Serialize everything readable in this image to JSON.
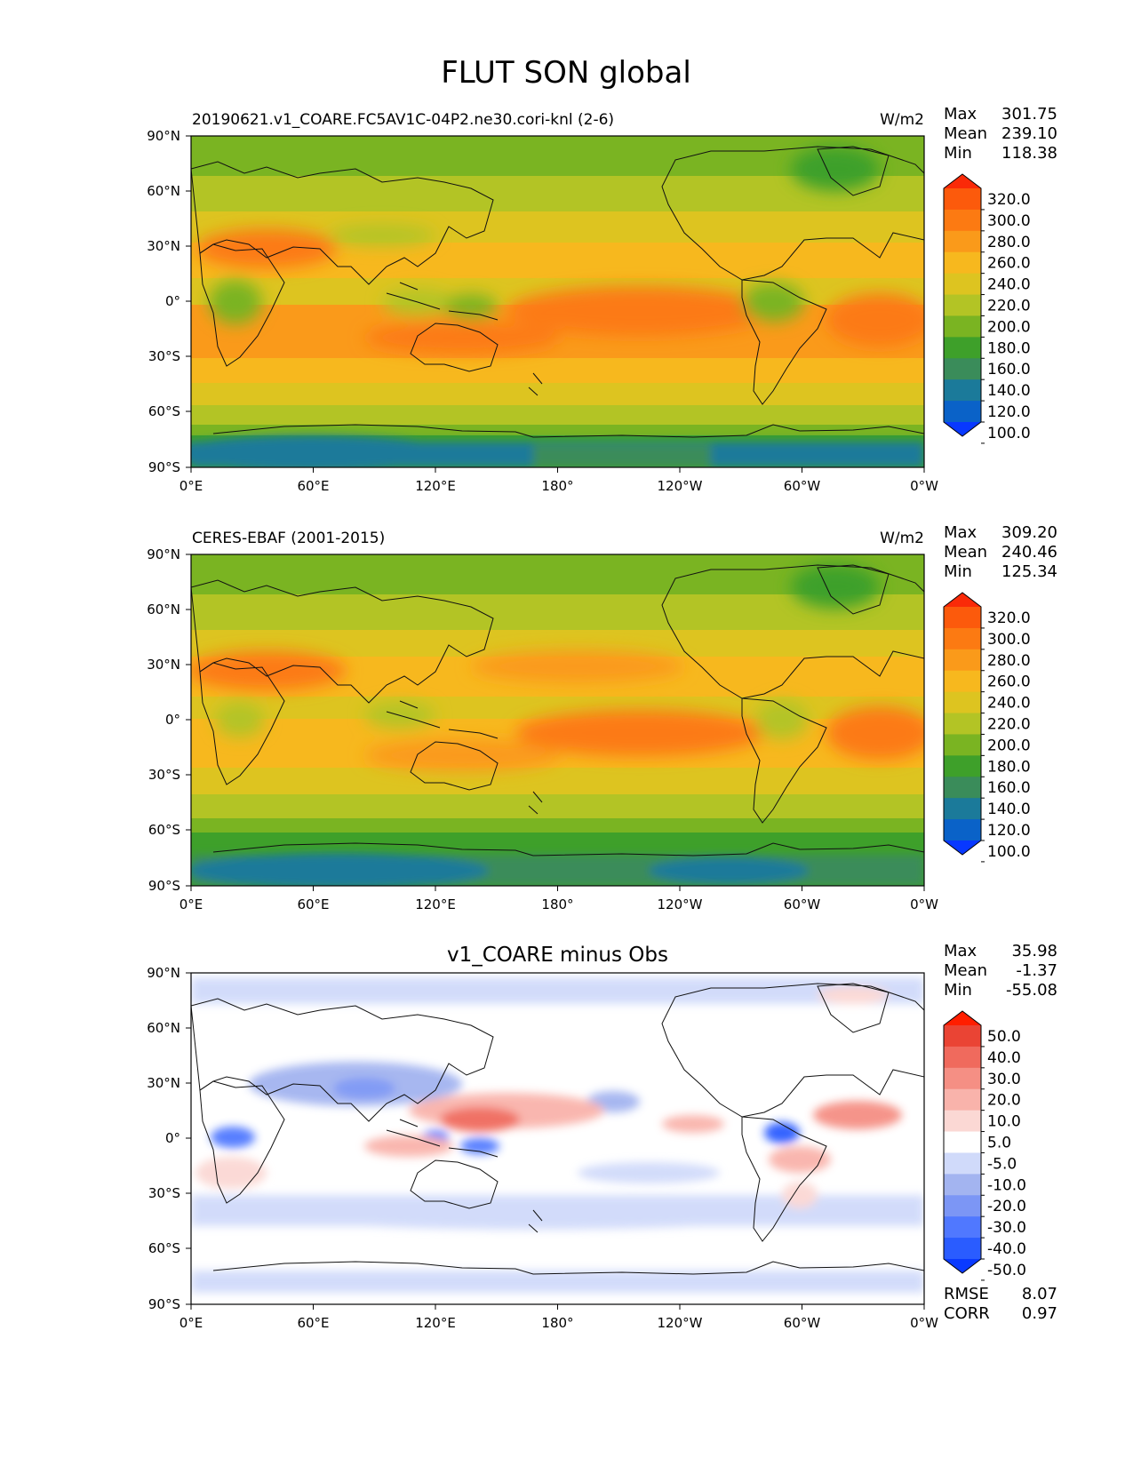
{
  "figure_title": "FLUT SON global",
  "colors": {
    "field_levels": [
      "#0838ff",
      "#0a62c8",
      "#1b7a9a",
      "#3a8c5a",
      "#3ea02a",
      "#7ab422",
      "#b3c425",
      "#ddc420",
      "#f7b81e",
      "#fa9a1a",
      "#fc7a12",
      "#fc5a0c",
      "#fa2a08"
    ],
    "diff_levels": [
      "#0a3aff",
      "#2a5cff",
      "#5078ff",
      "#7c96f5",
      "#a3b4f0",
      "#d0dafa",
      "#ffffff",
      "#fbd8d4",
      "#f9b3ab",
      "#f58f84",
      "#f06a5d",
      "#ea4434",
      "#ff1e00"
    ]
  },
  "panels": [
    {
      "id": "test",
      "title": "",
      "left_label": "20190621.v1_COARE.FC5AV1C-04P2.ne30.cori-knl (2-6)",
      "units": "W/m2",
      "stats": [
        {
          "label": "Max",
          "value": "301.75"
        },
        {
          "label": "Mean",
          "value": "239.10"
        },
        {
          "label": "Min",
          "value": "118.38"
        }
      ],
      "colorbar_labels": [
        "320.0",
        "300.0",
        "280.0",
        "260.0",
        "240.0",
        "220.0",
        "200.0",
        "180.0",
        "160.0",
        "140.0",
        "120.0",
        "100.0"
      ],
      "colorbar_type": "field",
      "bottom_stats": []
    },
    {
      "id": "ref",
      "title": "",
      "left_label": "CERES-EBAF (2001-2015)",
      "units": "W/m2",
      "stats": [
        {
          "label": "Max",
          "value": "309.20"
        },
        {
          "label": "Mean",
          "value": "240.46"
        },
        {
          "label": "Min",
          "value": "125.34"
        }
      ],
      "colorbar_labels": [
        "320.0",
        "300.0",
        "280.0",
        "260.0",
        "240.0",
        "220.0",
        "200.0",
        "180.0",
        "160.0",
        "140.0",
        "120.0",
        "100.0"
      ],
      "colorbar_type": "field",
      "bottom_stats": []
    },
    {
      "id": "diff",
      "title": "v1_COARE minus Obs",
      "left_label": "",
      "units": "",
      "stats": [
        {
          "label": "Max",
          "value": "35.98"
        },
        {
          "label": "Mean",
          "value": "-1.37"
        },
        {
          "label": "Min",
          "value": "-55.08"
        }
      ],
      "colorbar_labels": [
        "50.0",
        "40.0",
        "30.0",
        "20.0",
        "10.0",
        "5.0",
        "-5.0",
        "-10.0",
        "-20.0",
        "-30.0",
        "-40.0",
        "-50.0"
      ],
      "colorbar_type": "diff",
      "bottom_stats": [
        {
          "label": "RMSE",
          "value": "8.07"
        },
        {
          "label": "CORR",
          "value": "0.97"
        }
      ]
    }
  ],
  "lon_ticks": [
    "0°E",
    "60°E",
    "120°E",
    "180°",
    "120°W",
    "60°W",
    "0°W"
  ],
  "lat_ticks": [
    "90°N",
    "60°N",
    "30°N",
    "0°",
    "30°S",
    "60°S",
    "90°S"
  ]
}
